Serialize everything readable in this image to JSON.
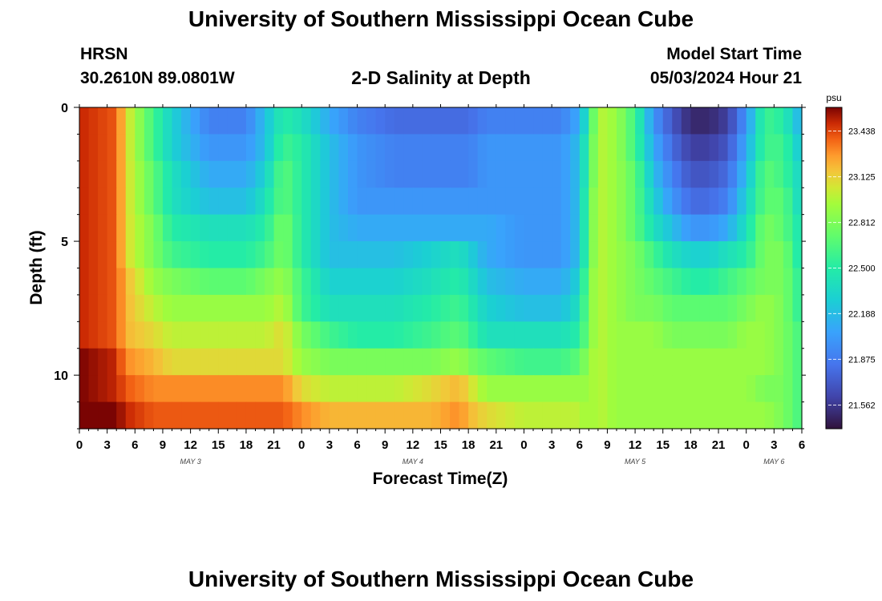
{
  "page": {
    "title": "University of Southern Mississippi Ocean Cube",
    "footer_title": "University of Southern Mississippi Ocean Cube",
    "station": "HRSN",
    "coordinates": "30.2610N  89.0801W",
    "plot_title": "2-D Salinity at Depth",
    "model_start_label": "Model Start Time",
    "model_start_value": "05/03/2024 Hour 21"
  },
  "chart_data": {
    "type": "heatmap",
    "title": "2-D Salinity at Depth",
    "xlabel": "Forecast Time(Z)",
    "ylabel": "Depth (ft)",
    "x_range_hours": [
      0,
      78
    ],
    "x_tick_labels": [
      "0",
      "3",
      "6",
      "9",
      "12",
      "15",
      "18",
      "21",
      "0",
      "3",
      "6",
      "9",
      "12",
      "15",
      "18",
      "21",
      "0",
      "3",
      "6",
      "9",
      "12",
      "15",
      "18",
      "21",
      "0",
      "3",
      "6"
    ],
    "x_day_labels": [
      {
        "label": "MAY 3",
        "hour": 12
      },
      {
        "label": "MAY 4",
        "hour": 36
      },
      {
        "label": "MAY 5",
        "hour": 60
      },
      {
        "label": "MAY 6",
        "hour": 75
      }
    ],
    "y_range": [
      0,
      12
    ],
    "y_ticks": [
      0,
      5,
      10
    ],
    "y_inverted": true,
    "colorbar": {
      "unit": "psu",
      "range": [
        21.4,
        23.6
      ],
      "tick_labels": [
        "23.438",
        "23.125",
        "22.812",
        "22.500",
        "22.188",
        "21.875",
        "21.562"
      ],
      "tick_values": [
        23.438,
        23.125,
        22.812,
        22.5,
        22.188,
        21.875,
        21.562
      ]
    },
    "depth_levels": [
      0.5,
      1.5,
      2.5,
      3.5,
      4.5,
      5.5,
      6.5,
      7.5,
      8.5,
      9.5,
      10.5,
      11.5
    ],
    "time_keyframes_hours": [
      0,
      4,
      5,
      8,
      10,
      14,
      18,
      20,
      22,
      24,
      27,
      30,
      34,
      38,
      41,
      42,
      44,
      48,
      52,
      54,
      55,
      56,
      58,
      60,
      62,
      64,
      66,
      68,
      70,
      72,
      74,
      76,
      78
    ],
    "salinity_keyframes": [
      [
        23.5,
        23.4,
        23.1,
        22.6,
        22.3,
        21.9,
        21.9,
        22.2,
        22.5,
        22.4,
        22.1,
        21.9,
        21.8,
        21.8,
        21.8,
        21.8,
        21.9,
        21.9,
        21.9,
        22.1,
        22.5,
        23.0,
        22.9,
        22.6,
        22.0,
        21.7,
        21.5,
        21.5,
        21.6,
        22.0,
        22.6,
        22.5,
        22.1
      ],
      [
        23.5,
        23.4,
        23.1,
        22.6,
        22.3,
        22.0,
        22.0,
        22.2,
        22.6,
        22.5,
        22.2,
        22.0,
        21.9,
        21.9,
        21.9,
        21.9,
        22.0,
        22.0,
        22.0,
        22.2,
        22.6,
        23.0,
        22.9,
        22.6,
        22.1,
        21.8,
        21.6,
        21.6,
        21.7,
        22.1,
        22.6,
        22.6,
        22.2
      ],
      [
        23.5,
        23.4,
        23.1,
        22.7,
        22.4,
        22.1,
        22.1,
        22.3,
        22.7,
        22.5,
        22.2,
        22.0,
        21.9,
        21.9,
        21.9,
        21.9,
        22.0,
        22.0,
        22.0,
        22.2,
        22.6,
        23.0,
        22.9,
        22.7,
        22.2,
        21.9,
        21.7,
        21.7,
        21.8,
        22.2,
        22.7,
        22.6,
        22.3
      ],
      [
        23.5,
        23.4,
        23.1,
        22.7,
        22.4,
        22.2,
        22.2,
        22.4,
        22.7,
        22.5,
        22.2,
        22.0,
        22.0,
        22.0,
        22.0,
        22.0,
        22.0,
        22.0,
        22.0,
        22.2,
        22.7,
        23.0,
        22.9,
        22.7,
        22.3,
        22.0,
        21.8,
        21.8,
        21.9,
        22.3,
        22.7,
        22.7,
        22.3
      ],
      [
        23.5,
        23.4,
        23.1,
        22.8,
        22.5,
        22.4,
        22.4,
        22.5,
        22.8,
        22.5,
        22.2,
        22.1,
        22.1,
        22.1,
        22.1,
        22.1,
        22.1,
        22.0,
        22.0,
        22.2,
        22.7,
        23.0,
        22.9,
        22.7,
        22.4,
        22.2,
        22.0,
        22.0,
        22.1,
        22.4,
        22.8,
        22.7,
        22.4
      ],
      [
        23.5,
        23.4,
        23.1,
        22.8,
        22.6,
        22.5,
        22.5,
        22.6,
        22.8,
        22.5,
        22.2,
        22.2,
        22.2,
        22.3,
        22.4,
        22.3,
        22.1,
        22.0,
        22.0,
        22.2,
        22.7,
        23.0,
        22.9,
        22.8,
        22.6,
        22.4,
        22.3,
        22.3,
        22.4,
        22.5,
        22.8,
        22.8,
        22.4
      ],
      [
        23.5,
        23.4,
        23.2,
        22.9,
        22.8,
        22.7,
        22.7,
        22.8,
        22.9,
        22.6,
        22.3,
        22.3,
        22.3,
        22.4,
        22.5,
        22.4,
        22.2,
        22.1,
        22.1,
        22.3,
        22.8,
        23.0,
        22.9,
        22.8,
        22.7,
        22.6,
        22.5,
        22.5,
        22.6,
        22.7,
        22.8,
        22.8,
        22.5
      ],
      [
        23.5,
        23.4,
        23.2,
        23.0,
        22.9,
        22.9,
        22.9,
        22.9,
        23.0,
        22.6,
        22.4,
        22.4,
        22.4,
        22.5,
        22.6,
        22.5,
        22.3,
        22.2,
        22.2,
        22.4,
        22.8,
        23.0,
        22.9,
        22.8,
        22.8,
        22.7,
        22.7,
        22.7,
        22.7,
        22.8,
        22.9,
        22.8,
        22.5
      ],
      [
        23.5,
        23.4,
        23.2,
        23.1,
        23.0,
        23.0,
        23.0,
        23.0,
        23.1,
        22.8,
        22.6,
        22.5,
        22.5,
        22.6,
        22.7,
        22.6,
        22.4,
        22.4,
        22.4,
        22.5,
        22.8,
        23.0,
        22.9,
        22.9,
        22.9,
        22.8,
        22.8,
        22.8,
        22.8,
        22.9,
        22.9,
        22.8,
        22.6
      ],
      [
        23.6,
        23.5,
        23.3,
        23.2,
        23.1,
        23.1,
        23.1,
        23.1,
        23.1,
        22.9,
        22.8,
        22.8,
        22.8,
        22.8,
        22.9,
        22.8,
        22.7,
        22.6,
        22.6,
        22.7,
        22.9,
        23.0,
        22.9,
        22.9,
        22.9,
        22.9,
        22.9,
        22.9,
        22.9,
        22.9,
        22.9,
        22.8,
        22.6
      ],
      [
        23.6,
        23.5,
        23.4,
        23.3,
        23.3,
        23.3,
        23.3,
        23.3,
        23.3,
        23.1,
        23.0,
        23.0,
        23.0,
        23.1,
        23.2,
        23.1,
        22.9,
        22.9,
        22.9,
        22.9,
        22.9,
        23.0,
        22.9,
        22.9,
        22.9,
        22.9,
        22.9,
        22.9,
        22.9,
        22.9,
        22.8,
        22.8,
        22.6
      ],
      [
        23.6,
        23.6,
        23.5,
        23.4,
        23.4,
        23.4,
        23.4,
        23.4,
        23.4,
        23.3,
        23.2,
        23.2,
        23.2,
        23.2,
        23.3,
        23.2,
        23.1,
        23.0,
        23.0,
        23.0,
        22.9,
        23.0,
        22.9,
        22.9,
        22.9,
        22.9,
        22.9,
        22.9,
        22.9,
        22.9,
        22.9,
        22.8,
        22.6
      ]
    ]
  }
}
